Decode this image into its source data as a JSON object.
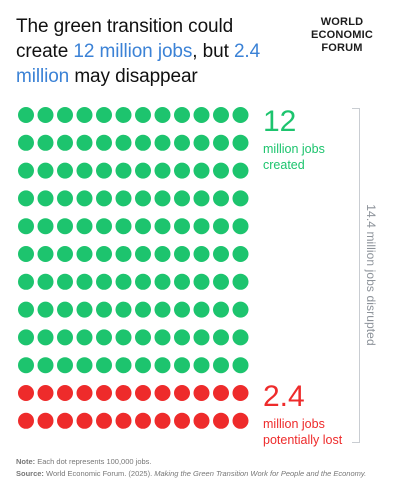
{
  "title": {
    "part1": "The green transition could create ",
    "highlight1": "12 million jobs",
    "part2": ", but ",
    "highlight2": "2.4 million",
    "part3": " may disappear"
  },
  "logo": {
    "line1": "WORLD",
    "line2": "ECONOMIC",
    "line3": "FORUM"
  },
  "chart_data": {
    "type": "dot-matrix",
    "unit": "Each dot represents 100,000 jobs.",
    "columns": 12,
    "series": [
      {
        "name": "million jobs created",
        "value": 12,
        "dots": 120,
        "color": "#1dc46e"
      },
      {
        "name": "million jobs potentially lost",
        "value": 2.4,
        "dots": 24,
        "color": "#ee2b2b"
      }
    ],
    "total_label": "14.4 million jobs disrupted"
  },
  "stats": {
    "created_number": "12",
    "created_label_line1": "million jobs",
    "created_label_line2": "created",
    "lost_number": "2.4",
    "lost_label_line1": "million jobs",
    "lost_label_line2": "potentially lost"
  },
  "bracket_label": "14.4 million jobs disrupted",
  "footer": {
    "note_label": "Note:",
    "note_text": " Each dot represents 100,000 jobs.",
    "source_label": "Source:",
    "source_text": " World Economic Forum. (2025). ",
    "source_title": "Making the Green Transition Work for People and the Economy."
  },
  "colors": {
    "accent_blue": "#3b82d6",
    "green": "#1dc46e",
    "red": "#ee2b2b",
    "muted": "#8d939a"
  }
}
